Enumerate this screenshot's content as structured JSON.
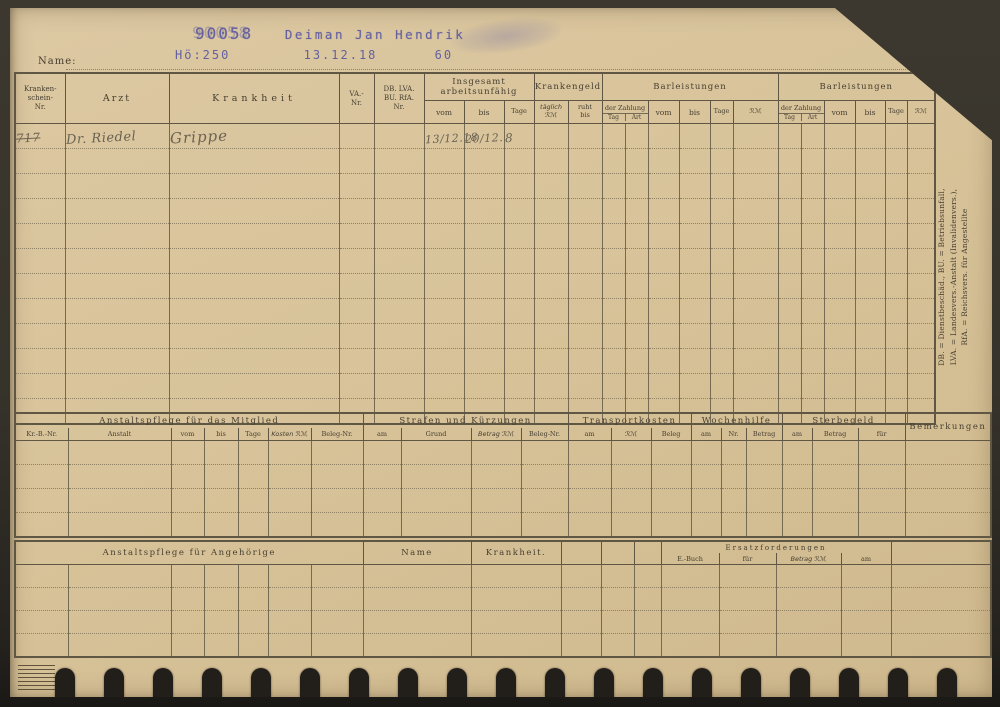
{
  "colors": {
    "card": "#d8c39a",
    "line": "#5f5644",
    "lineSoft": "#756a52",
    "dot": "#8e8164",
    "ink": "#463f30",
    "stamp": "#5a58a0",
    "hand": "#6b6251"
  },
  "header": {
    "name_label": "Name:"
  },
  "stamp": {
    "number": "90058",
    "name": "Deiman Jan Hendrik",
    "code": "Hö:250",
    "date": "13.12.18",
    "value": "60"
  },
  "main_table": {
    "headers": {
      "kb_nr": "Kranken-\nschein-\nNr.",
      "arzt": "Arzt",
      "krankheit": "Krankheit",
      "va_nr": "VA.-\nNr.",
      "db_nr": "DB.  LVA.\nBU.  RfA.\nNr.",
      "insgesamt": "Insgesamt\narbeitsunfähig",
      "krankengeld": "Krankengeld",
      "barleistungen": "Barleistungen",
      "vom": "vom",
      "bis": "bis",
      "tage": "Tage",
      "taeglich": "täglich\nℛℳ",
      "ruht": "ruht\nbis",
      "der_zahlung": "der Zahlung",
      "tag": "Tag",
      "art": "Art",
      "rm": "ℛℳ"
    },
    "entry": {
      "kb_nr": "717",
      "arzt": "Dr. Riedel",
      "krankheit": "Grippe",
      "vom": "13/12.18",
      "bis": "20/12.",
      "tage": "8"
    }
  },
  "legend": {
    "line1": "DB. = Dienstbeschäd.,  BU. = Betriebsunfall,",
    "line2": "LVA. = Landesvers.-Anstalt (Invalidenvers.),",
    "line3": "RfA. = Reichsvers. für Angestellte"
  },
  "care_table": {
    "group_mitglied": "Anstaltspflege für das Mitglied",
    "group_strafen": "Strafen und Kürzungen",
    "group_transport": "Transportkosten",
    "group_wochenhilfe": "Wochenhilfe",
    "group_sterbegeld": "Sterbegeld",
    "bemerkungen": "Bemerkungen",
    "sub": {
      "kr_b_nr": "Kr.-B.-Nr.",
      "anstalt": "Anstalt",
      "vom": "vom",
      "bis": "bis",
      "tage": "Tage",
      "kosten": "Kosten ℛℳ",
      "beleg_nr": "Beleg-Nr.",
      "am": "am",
      "grund": "Grund",
      "betrag_rm": "Betrag ℛℳ",
      "rm": "ℛℳ",
      "beleg": "Beleg",
      "nr": "Nr.",
      "betrag": "Betrag",
      "fuer": "für"
    }
  },
  "angehoerige_table": {
    "group": "Anstaltspflege für Angehörige",
    "name": "Name",
    "krankheit": "Krankheit.",
    "ersatz": "Ersatzforderungen",
    "sub": {
      "e_buch": "E.-Buch",
      "fuer": "für",
      "betrag_rm": "Betrag ℛℳ",
      "am": "am"
    }
  }
}
